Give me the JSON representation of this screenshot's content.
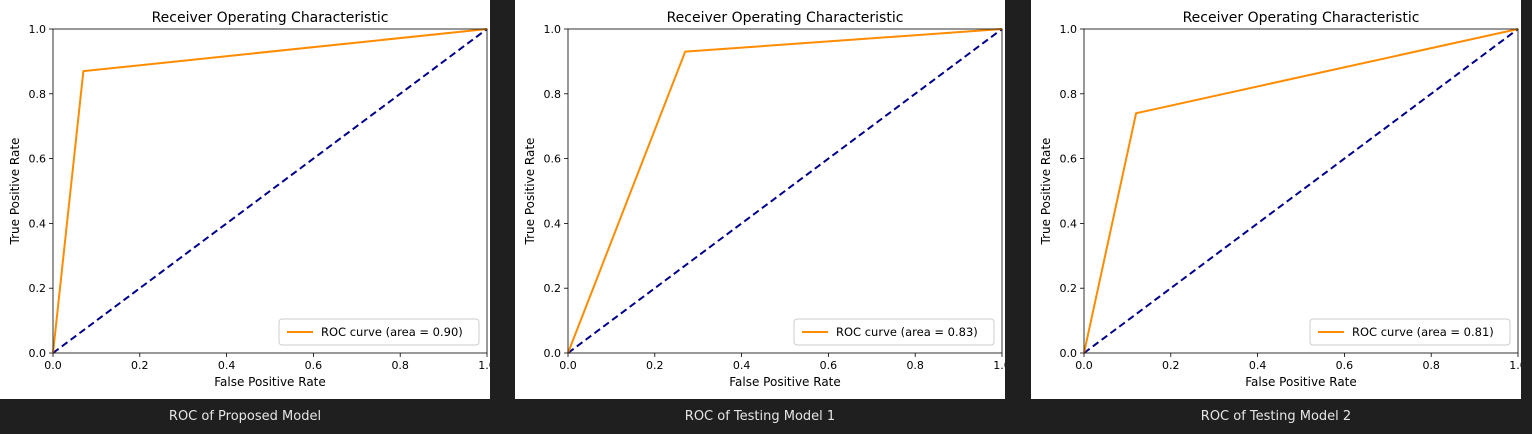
{
  "colors": {
    "curve": "#ff8c00",
    "diagonal": "#00008b",
    "background": "#1f1f1f"
  },
  "chart_data": [
    {
      "type": "line",
      "title": "Receiver Operating Characteristic",
      "xlabel": "False Positive Rate",
      "ylabel": "True Positive Rate",
      "xlim": [
        0.0,
        1.0
      ],
      "ylim": [
        0.0,
        1.0
      ],
      "xticks": [
        "0.0",
        "0.2",
        "0.4",
        "0.6",
        "0.8",
        "1.0"
      ],
      "yticks": [
        "0.0",
        "0.2",
        "0.4",
        "0.6",
        "0.8",
        "1.0"
      ],
      "legend_position": "lower-right",
      "grid": false,
      "series": [
        {
          "name": "ROC curve (area = 0.90)",
          "x": [
            0.0,
            0.07,
            1.0
          ],
          "y": [
            0.0,
            0.87,
            1.0
          ]
        }
      ],
      "diagonal": {
        "x": [
          0.0,
          1.0
        ],
        "y": [
          0.0,
          1.0
        ]
      },
      "caption": "ROC of Proposed Model"
    },
    {
      "type": "line",
      "title": "Receiver Operating Characteristic",
      "xlabel": "False Positive Rate",
      "ylabel": "True Positive Rate",
      "xlim": [
        0.0,
        1.0
      ],
      "ylim": [
        0.0,
        1.0
      ],
      "xticks": [
        "0.0",
        "0.2",
        "0.4",
        "0.6",
        "0.8",
        "1.0"
      ],
      "yticks": [
        "0.0",
        "0.2",
        "0.4",
        "0.6",
        "0.8",
        "1.0"
      ],
      "legend_position": "lower-right",
      "grid": false,
      "series": [
        {
          "name": "ROC curve (area = 0.83)",
          "x": [
            0.0,
            0.27,
            1.0
          ],
          "y": [
            0.0,
            0.93,
            1.0
          ]
        }
      ],
      "diagonal": {
        "x": [
          0.0,
          1.0
        ],
        "y": [
          0.0,
          1.0
        ]
      },
      "caption": "ROC of Testing Model 1"
    },
    {
      "type": "line",
      "title": "Receiver Operating Characteristic",
      "xlabel": "False Positive Rate",
      "ylabel": "True Positive Rate",
      "xlim": [
        0.0,
        1.0
      ],
      "ylim": [
        0.0,
        1.0
      ],
      "xticks": [
        "0.0",
        "0.2",
        "0.4",
        "0.6",
        "0.8",
        "1.0"
      ],
      "yticks": [
        "0.0",
        "0.2",
        "0.4",
        "0.6",
        "0.8",
        "1.0"
      ],
      "legend_position": "lower-right",
      "grid": false,
      "series": [
        {
          "name": "ROC curve (area = 0.81)",
          "x": [
            0.0,
            0.12,
            1.0
          ],
          "y": [
            0.0,
            0.74,
            1.0
          ]
        }
      ],
      "diagonal": {
        "x": [
          0.0,
          1.0
        ],
        "y": [
          0.0,
          1.0
        ]
      },
      "caption": "ROC of Testing Model 2"
    }
  ]
}
